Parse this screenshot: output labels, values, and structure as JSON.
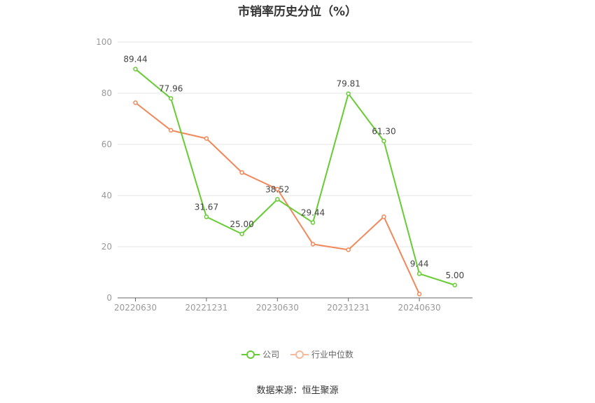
{
  "chart_data": {
    "type": "line",
    "title": "市销率历史分位（%）",
    "ylim": [
      0,
      100
    ],
    "yticks": [
      0,
      20,
      40,
      60,
      80,
      100
    ],
    "x": [
      "20220630",
      "20220930",
      "20221231",
      "20230331",
      "20230630",
      "20230930",
      "20231231",
      "20240331",
      "20240630",
      "20240930"
    ],
    "xtick_labels": [
      "20220630",
      "20221231",
      "20230630",
      "20231231",
      "20240630"
    ],
    "series": [
      {
        "name": "公司",
        "color": "#66cc33",
        "values": [
          89.44,
          77.96,
          31.67,
          25.0,
          38.52,
          29.44,
          79.81,
          61.3,
          9.44,
          5.0
        ],
        "labels": [
          "89.44",
          "77.96",
          "31.67",
          "25.00",
          "38.52",
          "29.44",
          "79.81",
          "61.30",
          "9.44",
          "5.00"
        ]
      },
      {
        "name": "行业中位数",
        "color": "#f0885a",
        "values": [
          76.3,
          65.5,
          62.3,
          49.0,
          42.5,
          21.0,
          18.8,
          31.7,
          1.5,
          null
        ]
      }
    ],
    "legend_position": "bottom",
    "grid": true
  },
  "source": "数据来源：恒生聚源"
}
